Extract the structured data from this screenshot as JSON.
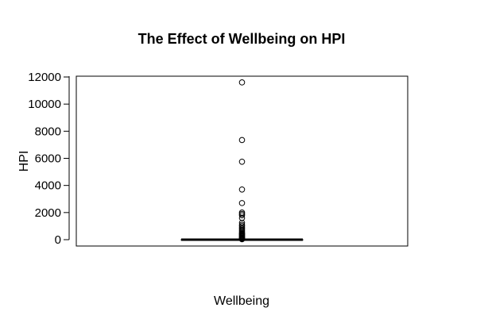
{
  "chart_data": {
    "type": "boxplot",
    "title": "The Effect of Wellbeing on HPI",
    "xlabel": "Wellbeing",
    "ylabel": "HPI",
    "ylim": [
      -400,
      12000
    ],
    "yticks": [
      0,
      2000,
      4000,
      6000,
      8000,
      10000,
      12000
    ],
    "ytick_labels": [
      "0",
      "2000",
      "4000",
      "6000",
      "8000",
      "10000",
      "12000"
    ],
    "box": {
      "min": 0,
      "q1": 0,
      "median": 0,
      "q3": 0,
      "max": 0
    },
    "outliers": [
      11600,
      7350,
      5750,
      3700,
      2700,
      2000,
      1900,
      1800,
      1600,
      1250,
      1100,
      1000,
      900,
      800,
      700,
      600,
      500,
      450,
      400,
      350,
      300,
      250,
      200,
      150,
      100,
      60,
      30
    ],
    "grid": false,
    "colors": {
      "line": "#000000",
      "background": "#ffffff"
    }
  }
}
